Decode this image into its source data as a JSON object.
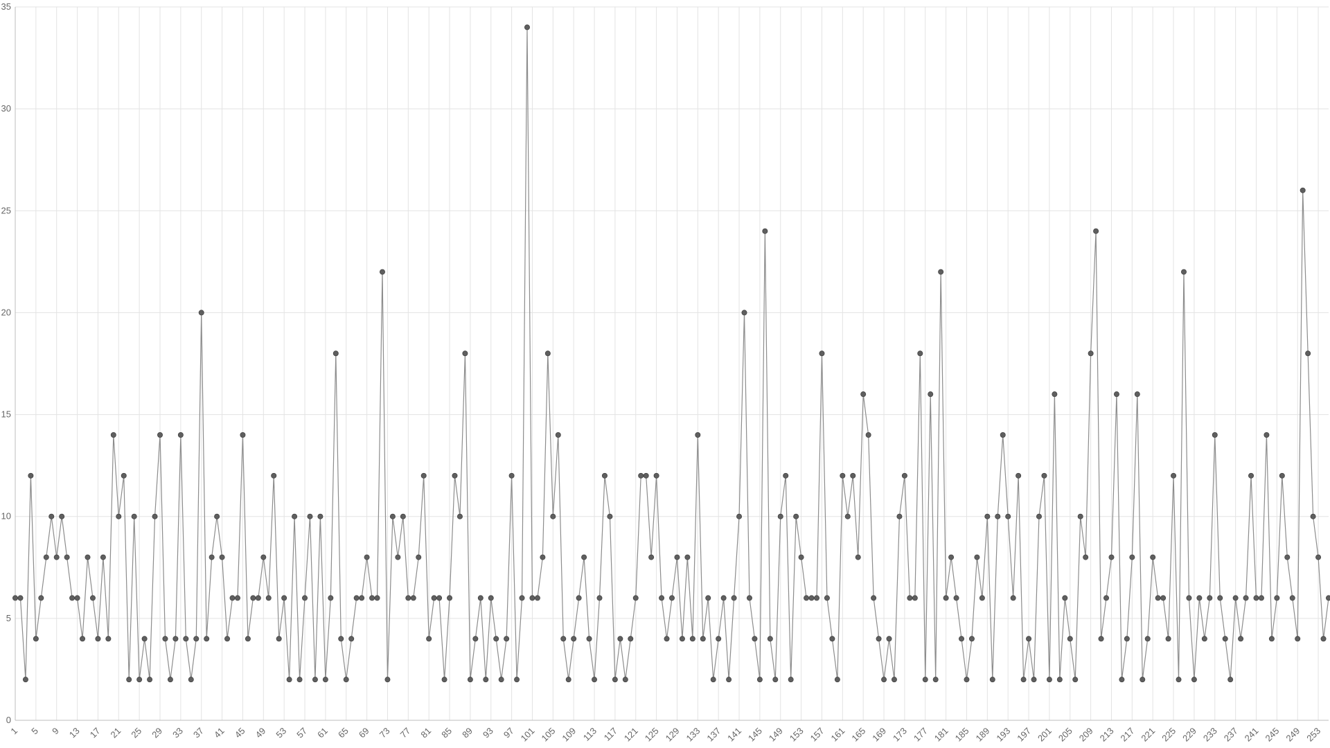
{
  "chart_data": {
    "type": "line",
    "title": "",
    "xlabel": "",
    "ylabel": "",
    "ylim": [
      0,
      35
    ],
    "y_ticks": [
      0,
      5,
      10,
      15,
      20,
      25,
      30,
      35
    ],
    "x_start": 1,
    "x_label_every": 4,
    "grid": "on",
    "legend": "none",
    "colors": {
      "line": "#8c8c8c",
      "point": "#5f5f5f",
      "grid": "#e3e3e3",
      "text": "#666666"
    },
    "values": [
      6,
      6,
      2,
      12,
      4,
      6,
      8,
      10,
      8,
      10,
      8,
      6,
      6,
      4,
      8,
      6,
      4,
      8,
      4,
      14,
      10,
      12,
      2,
      10,
      2,
      4,
      2,
      10,
      14,
      4,
      2,
      4,
      14,
      4,
      2,
      4,
      20,
      4,
      8,
      10,
      8,
      4,
      6,
      6,
      14,
      4,
      6,
      6,
      8,
      6,
      12,
      4,
      6,
      2,
      10,
      2,
      6,
      10,
      2,
      10,
      2,
      6,
      18,
      4,
      2,
      4,
      6,
      6,
      8,
      6,
      6,
      22,
      2,
      10,
      8,
      10,
      6,
      6,
      8,
      12,
      4,
      6,
      6,
      2,
      6,
      12,
      10,
      18,
      2,
      4,
      6,
      2,
      6,
      4,
      2,
      4,
      12,
      2,
      6,
      34,
      6,
      6,
      8,
      18,
      10,
      14,
      4,
      2,
      4,
      6,
      8,
      4,
      2,
      6,
      12,
      10,
      2,
      4,
      2,
      4,
      6,
      12,
      12,
      8,
      12,
      6,
      4,
      6,
      8,
      4,
      8,
      4,
      14,
      4,
      6,
      2,
      4,
      6,
      2,
      6,
      10,
      20,
      6,
      4,
      2,
      24,
      4,
      2,
      10,
      12,
      2,
      10,
      8,
      6,
      6,
      6,
      18,
      6,
      4,
      2,
      12,
      10,
      12,
      8,
      16,
      14,
      6,
      4,
      2,
      4,
      2,
      10,
      12,
      6,
      6,
      18,
      2,
      16,
      2,
      22,
      6,
      8,
      6,
      4,
      2,
      4,
      8,
      6,
      10,
      2,
      10,
      14,
      10,
      6,
      12,
      2,
      4,
      2,
      10,
      12,
      2,
      16,
      2,
      6,
      4,
      2,
      10,
      8,
      18,
      24,
      4,
      6,
      8,
      16,
      2,
      4,
      8,
      16,
      2,
      4,
      8,
      6,
      6,
      4,
      12,
      2,
      22,
      6,
      2,
      6,
      4,
      6,
      14,
      6,
      4,
      2,
      6,
      4,
      6,
      12,
      6,
      6,
      14,
      4,
      6,
      12,
      8,
      6,
      4,
      26,
      18,
      10,
      8,
      4,
      6
    ]
  }
}
